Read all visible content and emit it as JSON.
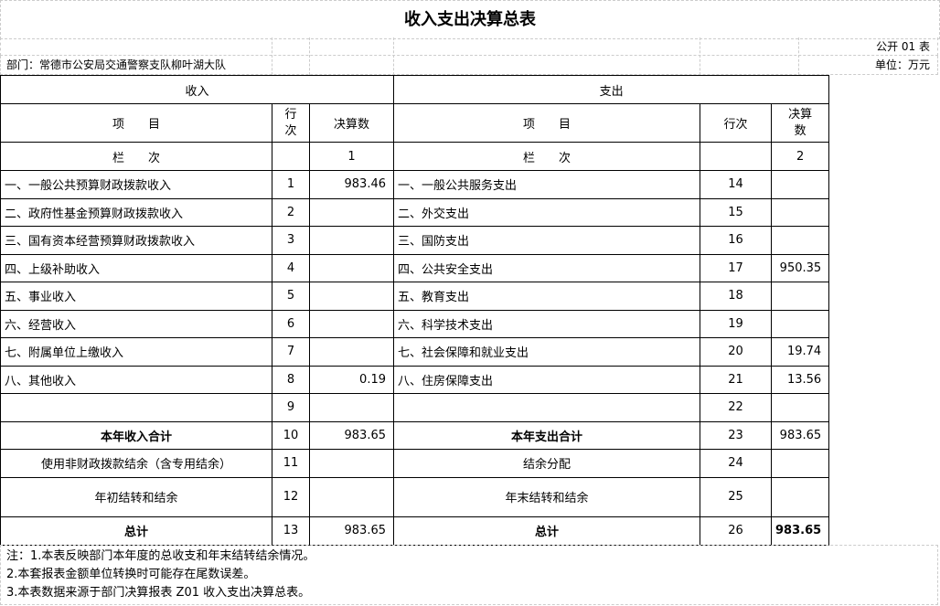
{
  "title": "收入支出决算总表",
  "form_no": "公开 01 表",
  "department": "部门：常德市公安局交通警察支队柳叶湖大队",
  "unit": "单位：万元",
  "header": {
    "income": "收入",
    "expense": "支出",
    "item": "项　　目",
    "row_no_income": "行次",
    "row_no_expense": "行次",
    "amount_income": "决算数",
    "amount_expense": "决算数",
    "column_label": "栏　　次",
    "col_income": "1",
    "col_expense": "2"
  },
  "rows": [
    {
      "in_item": "一、一般公共预算财政拨款收入",
      "in_no": "1",
      "in_amt": "983.46",
      "ex_item": "一、一般公共服务支出",
      "ex_no": "14",
      "ex_amt": ""
    },
    {
      "in_item": "二、政府性基金预算财政拨款收入",
      "in_no": "2",
      "in_amt": "",
      "ex_item": "二、外交支出",
      "ex_no": "15",
      "ex_amt": ""
    },
    {
      "in_item": "三、国有资本经营预算财政拨款收入",
      "in_no": "3",
      "in_amt": "",
      "ex_item": "三、国防支出",
      "ex_no": "16",
      "ex_amt": ""
    },
    {
      "in_item": "四、上级补助收入",
      "in_no": "4",
      "in_amt": "",
      "ex_item": "四、公共安全支出",
      "ex_no": "17",
      "ex_amt": "950.35"
    },
    {
      "in_item": "五、事业收入",
      "in_no": "5",
      "in_amt": "",
      "ex_item": "五、教育支出",
      "ex_no": "18",
      "ex_amt": ""
    },
    {
      "in_item": "六、经营收入",
      "in_no": "6",
      "in_amt": "",
      "ex_item": "六、科学技术支出",
      "ex_no": "19",
      "ex_amt": ""
    },
    {
      "in_item": "七、附属单位上缴收入",
      "in_no": "7",
      "in_amt": "",
      "ex_item": "七、社会保障和就业支出",
      "ex_no": "20",
      "ex_amt": "19.74"
    },
    {
      "in_item": "八、其他收入",
      "in_no": "8",
      "in_amt": "0.19",
      "ex_item": "八、住房保障支出",
      "ex_no": "21",
      "ex_amt": "13.56"
    },
    {
      "in_item": "",
      "in_no": "9",
      "in_amt": "",
      "ex_item": "",
      "ex_no": "22",
      "ex_amt": ""
    }
  ],
  "summary": [
    {
      "in_item": "本年收入合计",
      "in_no": "10",
      "in_amt": "983.65",
      "ex_item": "本年支出合计",
      "ex_no": "23",
      "ex_amt": "983.65"
    },
    {
      "in_item": "使用非财政拨款结余（含专用结余）",
      "in_no": "11",
      "in_amt": "",
      "ex_item": "结余分配",
      "ex_no": "24",
      "ex_amt": ""
    },
    {
      "in_item": "年初结转和结余",
      "in_no": "12",
      "in_amt": "",
      "ex_item": "年末结转和结余",
      "ex_no": "25",
      "ex_amt": ""
    },
    {
      "in_item": "总计",
      "in_no": "13",
      "in_amt": "983.65",
      "ex_item": "总计",
      "ex_no": "26",
      "ex_amt": "983.65"
    }
  ],
  "notes": [
    "注：1.本表反映部门本年度的总收支和年末结转结余情况。",
    "2.本套报表金额单位转换时可能存在尾数误差。",
    "3.本表数据来源于部门决算报表 Z01 收入支出决算总表。"
  ]
}
